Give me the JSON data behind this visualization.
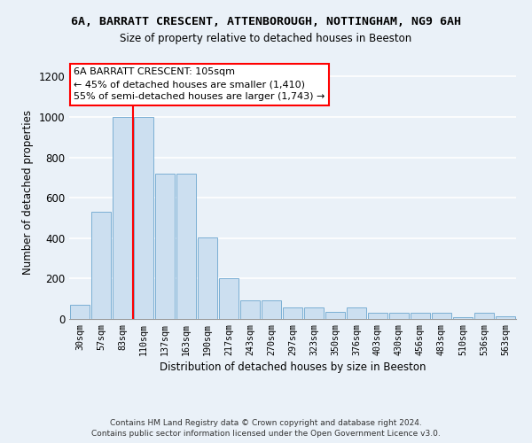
{
  "title_line1": "6A, BARRATT CRESCENT, ATTENBOROUGH, NOTTINGHAM, NG9 6AH",
  "title_line2": "Size of property relative to detached houses in Beeston",
  "xlabel": "Distribution of detached houses by size in Beeston",
  "ylabel": "Number of detached properties",
  "categories": [
    "30sqm",
    "57sqm",
    "83sqm",
    "110sqm",
    "137sqm",
    "163sqm",
    "190sqm",
    "217sqm",
    "243sqm",
    "270sqm",
    "297sqm",
    "323sqm",
    "350sqm",
    "376sqm",
    "403sqm",
    "430sqm",
    "456sqm",
    "483sqm",
    "510sqm",
    "536sqm",
    "563sqm"
  ],
  "values": [
    70,
    530,
    1000,
    1000,
    720,
    720,
    405,
    200,
    90,
    90,
    55,
    55,
    35,
    55,
    30,
    30,
    30,
    30,
    10,
    30,
    15
  ],
  "bar_color": "#ccdff0",
  "bar_edge_color": "#7bafd4",
  "background_color": "#eaf1f8",
  "grid_color": "#ffffff",
  "annotation_text": "6A BARRATT CRESCENT: 105sqm\n← 45% of detached houses are smaller (1,410)\n55% of semi-detached houses are larger (1,743) →",
  "red_line_x": 2.5,
  "ylim": [
    0,
    1250
  ],
  "yticks": [
    0,
    200,
    400,
    600,
    800,
    1000,
    1200
  ],
  "footer_line1": "Contains HM Land Registry data © Crown copyright and database right 2024.",
  "footer_line2": "Contains public sector information licensed under the Open Government Licence v3.0."
}
